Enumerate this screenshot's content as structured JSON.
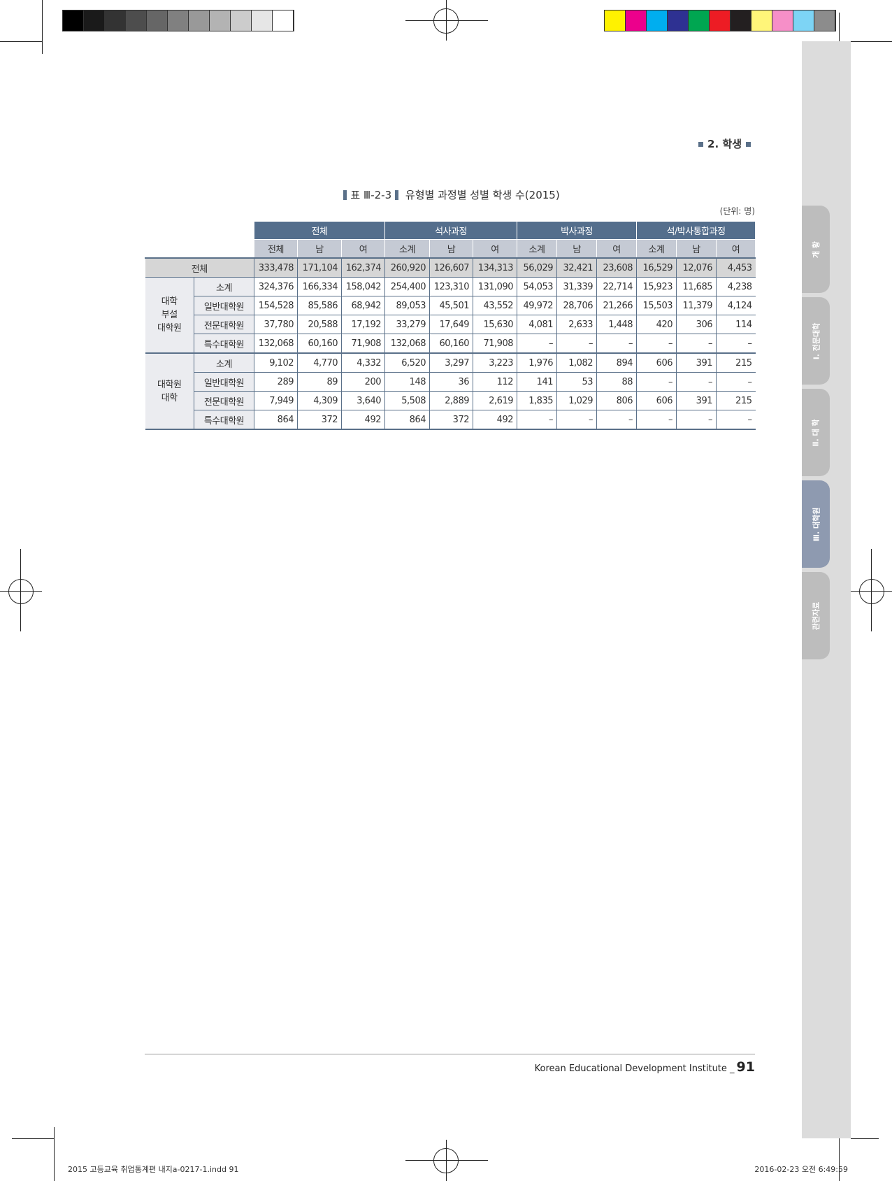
{
  "print_marks": {
    "gray_swatches": [
      "#000000",
      "#1a1a1a",
      "#333333",
      "#4d4d4d",
      "#666666",
      "#808080",
      "#999999",
      "#b3b3b3",
      "#cccccc",
      "#e6e6e6",
      "#ffffff"
    ],
    "color_swatches": [
      "#fff200",
      "#ec008c",
      "#00aeef",
      "#2e3192",
      "#00a651",
      "#ed1c24",
      "#231f20",
      "#fff579",
      "#f68fc8",
      "#7dd4f5",
      "#8c8c8c"
    ]
  },
  "header": {
    "section": "2. 학생"
  },
  "side_tabs": [
    {
      "label": "개 황",
      "active": false
    },
    {
      "label": "Ⅰ. 전문대학",
      "active": false
    },
    {
      "label": "Ⅱ. 대 학",
      "active": false
    },
    {
      "label": "Ⅲ. 대학원",
      "active": true
    },
    {
      "label": "관련자료",
      "active": false
    }
  ],
  "table": {
    "number": "표 Ⅲ-2-3",
    "title": "유형별 과정별 성별 학생 수(2015)",
    "unit": "(단위: 명)",
    "group_headers": [
      "전체",
      "석사과정",
      "박사과정",
      "석/박사통합과정"
    ],
    "sub_headers": [
      "전체",
      "남",
      "여",
      "소계",
      "남",
      "여",
      "소계",
      "남",
      "여",
      "소계",
      "남",
      "여"
    ],
    "total_row": {
      "label": "전체",
      "values": [
        "333,478",
        "171,104",
        "162,374",
        "260,920",
        "126,607",
        "134,313",
        "56,029",
        "32,421",
        "23,608",
        "16,529",
        "12,076",
        "4,453"
      ]
    },
    "groups": [
      {
        "label_lines": [
          "대학",
          "부설",
          "대학원"
        ],
        "rows": [
          {
            "label": "소계",
            "values": [
              "324,376",
              "166,334",
              "158,042",
              "254,400",
              "123,310",
              "131,090",
              "54,053",
              "31,339",
              "22,714",
              "15,923",
              "11,685",
              "4,238"
            ]
          },
          {
            "label": "일반대학원",
            "values": [
              "154,528",
              "85,586",
              "68,942",
              "89,053",
              "45,501",
              "43,552",
              "49,972",
              "28,706",
              "21,266",
              "15,503",
              "11,379",
              "4,124"
            ]
          },
          {
            "label": "전문대학원",
            "values": [
              "37,780",
              "20,588",
              "17,192",
              "33,279",
              "17,649",
              "15,630",
              "4,081",
              "2,633",
              "1,448",
              "420",
              "306",
              "114"
            ]
          },
          {
            "label": "특수대학원",
            "values": [
              "132,068",
              "60,160",
              "71,908",
              "132,068",
              "60,160",
              "71,908",
              "–",
              "–",
              "–",
              "–",
              "–",
              "–"
            ]
          }
        ]
      },
      {
        "label_lines": [
          "대학원",
          "대학"
        ],
        "rows": [
          {
            "label": "소계",
            "values": [
              "9,102",
              "4,770",
              "4,332",
              "6,520",
              "3,297",
              "3,223",
              "1,976",
              "1,082",
              "894",
              "606",
              "391",
              "215"
            ]
          },
          {
            "label": "일반대학원",
            "values": [
              "289",
              "89",
              "200",
              "148",
              "36",
              "112",
              "141",
              "53",
              "88",
              "–",
              "–",
              "–"
            ]
          },
          {
            "label": "전문대학원",
            "values": [
              "7,949",
              "4,309",
              "3,640",
              "5,508",
              "2,889",
              "2,619",
              "1,835",
              "1,029",
              "806",
              "606",
              "391",
              "215"
            ]
          },
          {
            "label": "특수대학원",
            "values": [
              "864",
              "372",
              "492",
              "864",
              "372",
              "492",
              "–",
              "–",
              "–",
              "–",
              "–",
              "–"
            ]
          }
        ]
      }
    ]
  },
  "footer": {
    "org": "Korean Educational Development Institute _",
    "page": "91"
  },
  "slug": {
    "file": "2015 고등교육 취업통계편 내지a-0217-1.indd   91",
    "date": "2016-02-23   오전 6:49:59"
  }
}
